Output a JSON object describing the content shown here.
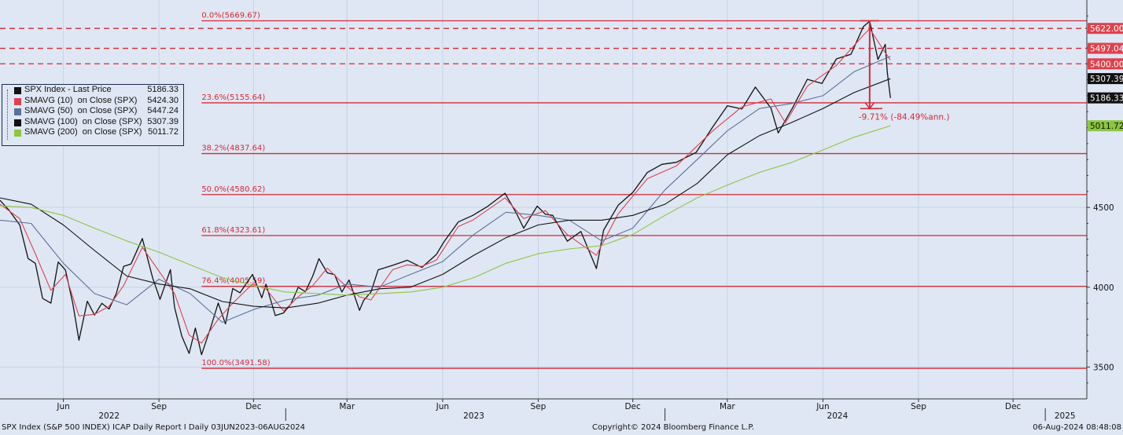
{
  "chart_data": {
    "type": "line",
    "x_range": [
      "2022-04-01",
      "2025-02-10"
    ],
    "y_range": [
      3300,
      5800
    ],
    "x_labels": [
      {
        "label": "Jun",
        "date": "2022-06-01"
      },
      {
        "label": "Sep",
        "date": "2022-09-01"
      },
      {
        "label": "Dec",
        "date": "2022-12-01"
      },
      {
        "label": "Mar",
        "date": "2023-03-01"
      },
      {
        "label": "Jun",
        "date": "2023-06-01"
      },
      {
        "label": "Sep",
        "date": "2023-09-01"
      },
      {
        "label": "Dec",
        "date": "2023-12-01"
      },
      {
        "label": "Mar",
        "date": "2024-03-01"
      },
      {
        "label": "Jun",
        "date": "2024-06-01"
      },
      {
        "label": "Sep",
        "date": "2024-09-01"
      },
      {
        "label": "Dec",
        "date": "2024-12-01"
      }
    ],
    "year_labels": [
      {
        "label": "2022",
        "date": "2022-07-15"
      },
      {
        "label": "2023",
        "date": "2023-07-01"
      },
      {
        "label": "2024",
        "date": "2024-06-15"
      },
      {
        "label": "2025",
        "date": "2025-01-20"
      }
    ],
    "y_ticks": [
      3500,
      4000,
      4500
    ],
    "fib_levels": [
      {
        "label": "0.0%(5669.67)",
        "value": 5669.67
      },
      {
        "label": "23.6%(5155.64)",
        "value": 5155.64
      },
      {
        "label": "38.2%(4837.64)",
        "value": 4837.64
      },
      {
        "label": "50.0%(4580.62)",
        "value": 4580.62
      },
      {
        "label": "61.8%(4323.61)",
        "value": 4323.61
      },
      {
        "label": "76.4%(4005.59)",
        "value": 4005.59
      },
      {
        "label": "100.0%(3491.58)",
        "value": 3491.58
      }
    ],
    "fib_start_date": "2022-10-12",
    "dashed_levels": [
      {
        "label": "5622.00",
        "value": 5622.0
      },
      {
        "label": "5497.04",
        "value": 5497.04
      },
      {
        "label": "5400.00",
        "value": 5400.0
      }
    ],
    "price_tags": [
      {
        "label": "5307.39",
        "value": 5307.39,
        "bg": "#111111",
        "fg": "#ffffff"
      },
      {
        "label": "5186.33",
        "value": 5186.33,
        "bg": "#111111",
        "fg": "#ffffff"
      },
      {
        "label": "5011.72",
        "value": 5011.72,
        "bg": "#8cc63f",
        "fg": "#111111"
      }
    ],
    "drawdown": {
      "label": "-9.71% (-84.49%ann.)",
      "from": 5669.67,
      "to": 5119.26,
      "date": "2024-07-16"
    },
    "legend": [
      {
        "name": "SPX Index - Last Price",
        "value": "5186.33",
        "color": "#111111"
      },
      {
        "name": "SMAVG (10)  on Close (SPX)",
        "value": "5424.30",
        "color": "#e0414c"
      },
      {
        "name": "SMAVG (50)  on Close (SPX)",
        "value": "5447.24",
        "color": "#5a7199"
      },
      {
        "name": "SMAVG (100)  on Close (SPX)",
        "value": "5307.39",
        "color": "#111111"
      },
      {
        "name": "SMAVG (200)  on Close (SPX)",
        "value": "5011.72",
        "color": "#8cc63f"
      }
    ],
    "series": [
      {
        "name": "SPX Index - Last Price",
        "color": "#111111",
        "points": [
          [
            "2022-04-01",
            4545
          ],
          [
            "2022-04-10",
            4480
          ],
          [
            "2022-04-20",
            4390
          ],
          [
            "2022-04-28",
            4180
          ],
          [
            "2022-05-05",
            4150
          ],
          [
            "2022-05-12",
            3930
          ],
          [
            "2022-05-20",
            3900
          ],
          [
            "2022-05-27",
            4158
          ],
          [
            "2022-06-03",
            4108
          ],
          [
            "2022-06-10",
            3900
          ],
          [
            "2022-06-16",
            3667
          ],
          [
            "2022-06-24",
            3912
          ],
          [
            "2022-07-01",
            3825
          ],
          [
            "2022-07-08",
            3899
          ],
          [
            "2022-07-15",
            3863
          ],
          [
            "2022-07-22",
            3962
          ],
          [
            "2022-07-29",
            4130
          ],
          [
            "2022-08-05",
            4145
          ],
          [
            "2022-08-16",
            4305
          ],
          [
            "2022-08-26",
            4057
          ],
          [
            "2022-09-02",
            3924
          ],
          [
            "2022-09-12",
            4110
          ],
          [
            "2022-09-16",
            3873
          ],
          [
            "2022-09-23",
            3693
          ],
          [
            "2022-09-30",
            3585
          ],
          [
            "2022-10-06",
            3744
          ],
          [
            "2022-10-12",
            3577
          ],
          [
            "2022-10-21",
            3752
          ],
          [
            "2022-10-28",
            3901
          ],
          [
            "2022-11-04",
            3770
          ],
          [
            "2022-11-11",
            3992
          ],
          [
            "2022-11-18",
            3965
          ],
          [
            "2022-11-30",
            4080
          ],
          [
            "2022-12-09",
            3934
          ],
          [
            "2022-12-13",
            4019
          ],
          [
            "2022-12-22",
            3822
          ],
          [
            "2022-12-30",
            3839
          ],
          [
            "2023-01-06",
            3895
          ],
          [
            "2023-01-13",
            3999
          ],
          [
            "2023-01-20",
            3972
          ],
          [
            "2023-01-27",
            4070
          ],
          [
            "2023-02-02",
            4179
          ],
          [
            "2023-02-10",
            4090
          ],
          [
            "2023-02-17",
            4079
          ],
          [
            "2023-02-24",
            3970
          ],
          [
            "2023-03-03",
            4045
          ],
          [
            "2023-03-13",
            3855
          ],
          [
            "2023-03-17",
            3917
          ],
          [
            "2023-03-24",
            3970
          ],
          [
            "2023-03-31",
            4109
          ],
          [
            "2023-04-14",
            4137
          ],
          [
            "2023-04-28",
            4169
          ],
          [
            "2023-05-12",
            4124
          ],
          [
            "2023-05-26",
            4205
          ],
          [
            "2023-06-02",
            4282
          ],
          [
            "2023-06-16",
            4409
          ],
          [
            "2023-06-30",
            4450
          ],
          [
            "2023-07-14",
            4505
          ],
          [
            "2023-07-31",
            4589
          ],
          [
            "2023-08-11",
            4464
          ],
          [
            "2023-08-18",
            4370
          ],
          [
            "2023-08-31",
            4508
          ],
          [
            "2023-09-08",
            4457
          ],
          [
            "2023-09-15",
            4450
          ],
          [
            "2023-09-29",
            4288
          ],
          [
            "2023-10-12",
            4349
          ],
          [
            "2023-10-27",
            4117
          ],
          [
            "2023-11-03",
            4358
          ],
          [
            "2023-11-17",
            4514
          ],
          [
            "2023-12-01",
            4594
          ],
          [
            "2023-12-15",
            4719
          ],
          [
            "2023-12-29",
            4770
          ],
          [
            "2024-01-12",
            4783
          ],
          [
            "2024-01-31",
            4845
          ],
          [
            "2024-02-16",
            5005
          ],
          [
            "2024-03-01",
            5137
          ],
          [
            "2024-03-15",
            5117
          ],
          [
            "2024-03-28",
            5254
          ],
          [
            "2024-04-12",
            5123
          ],
          [
            "2024-04-19",
            4967
          ],
          [
            "2024-05-03",
            5127
          ],
          [
            "2024-05-17",
            5303
          ],
          [
            "2024-05-31",
            5277
          ],
          [
            "2024-06-14",
            5431
          ],
          [
            "2024-06-28",
            5460
          ],
          [
            "2024-07-10",
            5633
          ],
          [
            "2024-07-16",
            5667
          ],
          [
            "2024-07-24",
            5427
          ],
          [
            "2024-07-31",
            5522
          ],
          [
            "2024-08-02",
            5346
          ],
          [
            "2024-08-05",
            5186
          ]
        ]
      },
      {
        "name": "SMAVG (10)  on Close (SPX)",
        "color": "#e0414c",
        "points": [
          [
            "2022-04-01",
            4520
          ],
          [
            "2022-04-20",
            4430
          ],
          [
            "2022-05-05",
            4210
          ],
          [
            "2022-05-20",
            3980
          ],
          [
            "2022-06-03",
            4080
          ],
          [
            "2022-06-16",
            3820
          ],
          [
            "2022-07-01",
            3830
          ],
          [
            "2022-07-15",
            3880
          ],
          [
            "2022-07-29",
            4010
          ],
          [
            "2022-08-16",
            4250
          ],
          [
            "2022-08-31",
            4110
          ],
          [
            "2022-09-16",
            3960
          ],
          [
            "2022-09-30",
            3700
          ],
          [
            "2022-10-12",
            3650
          ],
          [
            "2022-10-28",
            3800
          ],
          [
            "2022-11-11",
            3900
          ],
          [
            "2022-11-30",
            4020
          ],
          [
            "2022-12-13",
            3990
          ],
          [
            "2022-12-30",
            3850
          ],
          [
            "2023-01-13",
            3940
          ],
          [
            "2023-01-27",
            4010
          ],
          [
            "2023-02-10",
            4120
          ],
          [
            "2023-02-24",
            4030
          ],
          [
            "2023-03-13",
            3940
          ],
          [
            "2023-03-24",
            3920
          ],
          [
            "2023-04-14",
            4110
          ],
          [
            "2023-04-28",
            4140
          ],
          [
            "2023-05-12",
            4130
          ],
          [
            "2023-05-26",
            4170
          ],
          [
            "2023-06-16",
            4380
          ],
          [
            "2023-06-30",
            4420
          ],
          [
            "2023-07-31",
            4560
          ],
          [
            "2023-08-18",
            4430
          ],
          [
            "2023-09-08",
            4480
          ],
          [
            "2023-09-29",
            4330
          ],
          [
            "2023-10-27",
            4200
          ],
          [
            "2023-11-17",
            4460
          ],
          [
            "2023-12-15",
            4680
          ],
          [
            "2024-01-12",
            4760
          ],
          [
            "2024-02-16",
            4980
          ],
          [
            "2024-03-15",
            5130
          ],
          [
            "2024-04-12",
            5180
          ],
          [
            "2024-04-26",
            5030
          ],
          [
            "2024-05-17",
            5260
          ],
          [
            "2024-06-14",
            5390
          ],
          [
            "2024-07-10",
            5580
          ],
          [
            "2024-07-16",
            5620
          ],
          [
            "2024-07-31",
            5470
          ],
          [
            "2024-08-05",
            5424
          ]
        ]
      },
      {
        "name": "SMAVG (50)  on Close (SPX)",
        "color": "#5a7199",
        "points": [
          [
            "2022-04-01",
            4420
          ],
          [
            "2022-05-01",
            4400
          ],
          [
            "2022-06-01",
            4150
          ],
          [
            "2022-07-01",
            3960
          ],
          [
            "2022-08-01",
            3890
          ],
          [
            "2022-09-01",
            4050
          ],
          [
            "2022-10-01",
            3960
          ],
          [
            "2022-11-01",
            3780
          ],
          [
            "2022-12-01",
            3860
          ],
          [
            "2023-01-01",
            3920
          ],
          [
            "2023-02-01",
            3950
          ],
          [
            "2023-03-01",
            4020
          ],
          [
            "2023-04-01",
            4000
          ],
          [
            "2023-05-01",
            4080
          ],
          [
            "2023-06-01",
            4160
          ],
          [
            "2023-07-01",
            4330
          ],
          [
            "2023-08-01",
            4470
          ],
          [
            "2023-09-01",
            4450
          ],
          [
            "2023-10-01",
            4420
          ],
          [
            "2023-11-01",
            4290
          ],
          [
            "2023-12-01",
            4370
          ],
          [
            "2024-01-01",
            4610
          ],
          [
            "2024-02-01",
            4800
          ],
          [
            "2024-03-01",
            4980
          ],
          [
            "2024-04-01",
            5120
          ],
          [
            "2024-05-01",
            5150
          ],
          [
            "2024-06-01",
            5200
          ],
          [
            "2024-07-01",
            5350
          ],
          [
            "2024-08-05",
            5447
          ]
        ]
      },
      {
        "name": "SMAVG (100)  on Close (SPX)",
        "color": "#111111",
        "points": [
          [
            "2022-04-01",
            4560
          ],
          [
            "2022-05-01",
            4520
          ],
          [
            "2022-06-01",
            4390
          ],
          [
            "2022-07-01",
            4230
          ],
          [
            "2022-08-01",
            4070
          ],
          [
            "2022-09-01",
            4020
          ],
          [
            "2022-10-01",
            3990
          ],
          [
            "2022-11-01",
            3910
          ],
          [
            "2022-12-01",
            3880
          ],
          [
            "2023-01-01",
            3870
          ],
          [
            "2023-02-01",
            3900
          ],
          [
            "2023-03-01",
            3950
          ],
          [
            "2023-04-01",
            3990
          ],
          [
            "2023-05-01",
            4000
          ],
          [
            "2023-06-01",
            4080
          ],
          [
            "2023-07-01",
            4200
          ],
          [
            "2023-08-01",
            4310
          ],
          [
            "2023-09-01",
            4390
          ],
          [
            "2023-10-01",
            4420
          ],
          [
            "2023-11-01",
            4420
          ],
          [
            "2023-12-01",
            4450
          ],
          [
            "2024-01-01",
            4520
          ],
          [
            "2024-02-01",
            4650
          ],
          [
            "2024-03-01",
            4830
          ],
          [
            "2024-04-01",
            4950
          ],
          [
            "2024-05-01",
            5030
          ],
          [
            "2024-06-01",
            5120
          ],
          [
            "2024-07-01",
            5220
          ],
          [
            "2024-08-05",
            5307
          ]
        ]
      },
      {
        "name": "SMAVG (200)  on Close (SPX)",
        "color": "#8cc63f",
        "points": [
          [
            "2022-04-01",
            4510
          ],
          [
            "2022-05-01",
            4500
          ],
          [
            "2022-06-01",
            4450
          ],
          [
            "2022-07-01",
            4370
          ],
          [
            "2022-08-01",
            4290
          ],
          [
            "2022-09-01",
            4220
          ],
          [
            "2022-10-01",
            4140
          ],
          [
            "2022-11-01",
            4060
          ],
          [
            "2022-12-01",
            4010
          ],
          [
            "2023-01-01",
            3970
          ],
          [
            "2023-02-01",
            3960
          ],
          [
            "2023-03-01",
            3950
          ],
          [
            "2023-04-01",
            3960
          ],
          [
            "2023-05-01",
            3970
          ],
          [
            "2023-06-01",
            4000
          ],
          [
            "2023-07-01",
            4060
          ],
          [
            "2023-08-01",
            4150
          ],
          [
            "2023-09-01",
            4210
          ],
          [
            "2023-10-01",
            4240
          ],
          [
            "2023-11-01",
            4260
          ],
          [
            "2023-12-01",
            4330
          ],
          [
            "2024-01-01",
            4450
          ],
          [
            "2024-02-01",
            4560
          ],
          [
            "2024-03-01",
            4640
          ],
          [
            "2024-04-01",
            4720
          ],
          [
            "2024-05-01",
            4780
          ],
          [
            "2024-06-01",
            4860
          ],
          [
            "2024-07-01",
            4940
          ],
          [
            "2024-08-05",
            5012
          ]
        ]
      }
    ]
  },
  "footer": {
    "left": "SPX Index (S&P 500 INDEX) ICAP Daily Report I  Daily 03JUN2023-06AUG2024",
    "center": "Copyright© 2024 Bloomberg Finance L.P.",
    "right": "06-Aug-2024 08:48:08"
  }
}
